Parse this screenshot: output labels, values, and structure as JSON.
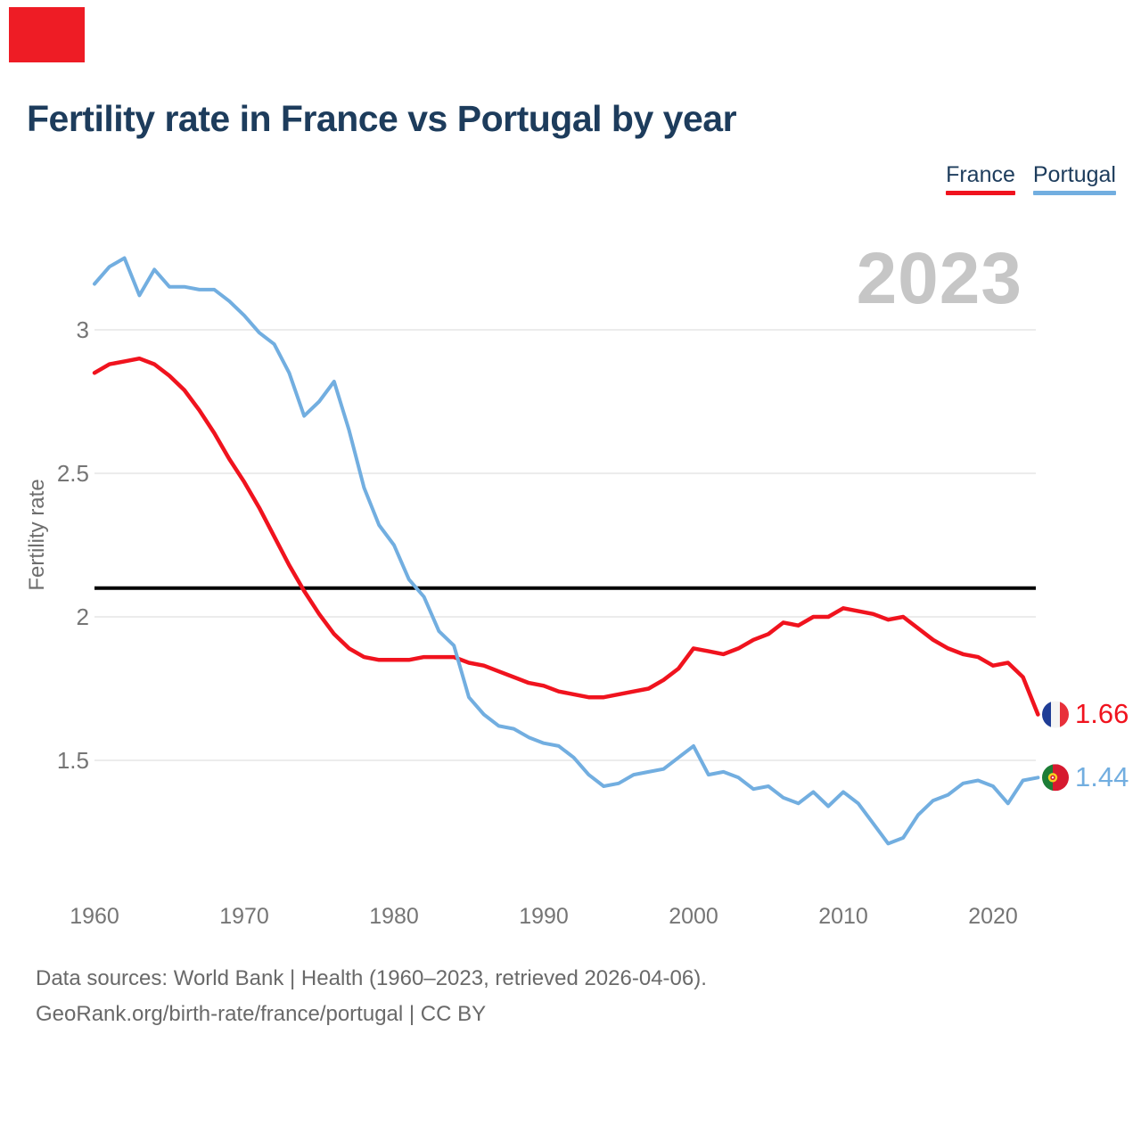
{
  "corner_mark": {
    "color": "#ee1c25"
  },
  "header": {
    "title": "Fertility rate in France vs Portugal by year"
  },
  "legend": [
    {
      "label": "France",
      "color": "#f0131e"
    },
    {
      "label": "Portugal",
      "color": "#72aee0"
    }
  ],
  "watermark": "2023",
  "chart_data": {
    "type": "line",
    "title": "Fertility rate in France vs Portugal by year",
    "xlabel": "",
    "ylabel": "Fertility rate",
    "x_start": 1960,
    "x_step": 1,
    "x_end": 2023,
    "xticks": [
      1960,
      1970,
      1980,
      1990,
      2000,
      2010,
      2020
    ],
    "yticks": [
      1.5,
      2,
      2.5,
      3
    ],
    "ylim": [
      1.05,
      3.3
    ],
    "grid": "horizontal",
    "reference_line": 2.1,
    "legend_position": "top-right",
    "series": [
      {
        "name": "France",
        "color": "#f0131e",
        "width": 4.5,
        "values": [
          2.85,
          2.88,
          2.89,
          2.9,
          2.88,
          2.84,
          2.79,
          2.72,
          2.64,
          2.55,
          2.47,
          2.38,
          2.28,
          2.18,
          2.09,
          2.01,
          1.94,
          1.89,
          1.86,
          1.85,
          1.85,
          1.85,
          1.86,
          1.86,
          1.86,
          1.84,
          1.83,
          1.81,
          1.79,
          1.77,
          1.76,
          1.74,
          1.73,
          1.72,
          1.72,
          1.73,
          1.74,
          1.75,
          1.78,
          1.82,
          1.89,
          1.88,
          1.87,
          1.89,
          1.92,
          1.94,
          1.98,
          1.97,
          2.0,
          2.0,
          2.03,
          2.02,
          2.01,
          1.99,
          2.0,
          1.96,
          1.92,
          1.89,
          1.87,
          1.86,
          1.83,
          1.84,
          1.79,
          1.66
        ]
      },
      {
        "name": "Portugal",
        "color": "#72aee0",
        "width": 4,
        "values": [
          3.16,
          3.22,
          3.25,
          3.12,
          3.21,
          3.15,
          3.15,
          3.14,
          3.14,
          3.1,
          3.05,
          2.99,
          2.95,
          2.85,
          2.7,
          2.75,
          2.82,
          2.65,
          2.45,
          2.32,
          2.25,
          2.13,
          2.07,
          1.95,
          1.9,
          1.72,
          1.66,
          1.62,
          1.61,
          1.58,
          1.56,
          1.55,
          1.51,
          1.45,
          1.41,
          1.42,
          1.45,
          1.46,
          1.47,
          1.51,
          1.55,
          1.45,
          1.46,
          1.44,
          1.4,
          1.41,
          1.37,
          1.35,
          1.39,
          1.34,
          1.39,
          1.35,
          1.28,
          1.21,
          1.23,
          1.31,
          1.36,
          1.38,
          1.42,
          1.43,
          1.41,
          1.35,
          1.43,
          1.44
        ]
      }
    ],
    "end_labels": [
      {
        "series": "France",
        "value": "1.66",
        "color": "#f0131e",
        "flag": "france"
      },
      {
        "series": "Portugal",
        "value": "1.44",
        "color": "#72aee0",
        "flag": "portugal"
      }
    ]
  },
  "footer": {
    "line1": "Data sources: World Bank | Health (1960–2023, retrieved 2026-04-06).",
    "line2": "GeoRank.org/birth-rate/france/portugal | CC BY"
  }
}
